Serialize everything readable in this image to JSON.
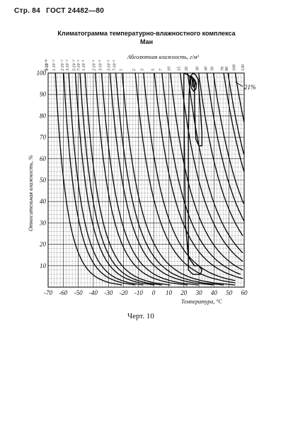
{
  "header": {
    "page_label": "Стр. 84",
    "standard": "ГОСТ 24482—80"
  },
  "figure": {
    "title": "Климатограмма температурно-влажностного комплекса",
    "subtitle": "Ман",
    "caption": "Черт. 10"
  },
  "chart_data": {
    "type": "line",
    "title": "Климатограмма температурно-влажностного комплекса",
    "subtitle": "Ман",
    "xlabel": "Температура, °С",
    "ylabel": "Относительная влажность, %",
    "top_axis_label": "Абсолютная влажность, г/м³",
    "xlim": [
      -70,
      60
    ],
    "ylim": [
      0,
      100
    ],
    "x_ticks": [
      -70,
      -60,
      -50,
      -40,
      -30,
      -20,
      -10,
      0,
      10,
      20,
      30,
      40,
      50,
      60
    ],
    "x_tick_labels": [
      "-70",
      "-60",
      "-50",
      "-40",
      "-30",
      "-20",
      "-10",
      "0",
      "10",
      "20",
      "30",
      "40",
      "50",
      "60"
    ],
    "y_ticks": [
      10,
      20,
      30,
      40,
      50,
      60,
      70,
      80,
      90,
      100
    ],
    "y_tick_labels": [
      "10",
      "20",
      "30",
      "40",
      "50",
      "60",
      "70",
      "80",
      "90",
      "100"
    ],
    "absolute_humidity_labels": [
      "3·10⁻³",
      "5·10⁻³",
      "1·10⁻²",
      "2·10⁻²",
      "3·10⁻²",
      "5·10⁻²",
      "7·10⁻²",
      "1·10⁻¹",
      "2·10⁻¹",
      "3·10⁻¹",
      "5·10⁻¹",
      "7·10⁻¹",
      "1",
      "2",
      "3",
      "5",
      "7",
      "10",
      "15",
      "20",
      "30",
      "40",
      "50",
      "70",
      "80",
      "100",
      "130"
    ],
    "absolute_humidity_values": [
      0.003,
      0.005,
      0.01,
      0.02,
      0.03,
      0.05,
      0.07,
      0.1,
      0.2,
      0.3,
      0.5,
      0.7,
      1,
      2,
      3,
      5,
      7,
      10,
      15,
      20,
      30,
      40,
      50,
      70,
      80,
      100,
      130
    ],
    "annotation": "21%",
    "annotation_value": 21,
    "series": [
      {
        "type": "closed-contour",
        "points": [
          [
            20,
            100
          ],
          [
            23,
            99
          ],
          [
            26,
            97
          ],
          [
            27,
            93
          ],
          [
            27,
            86
          ],
          [
            27.5,
            76
          ],
          [
            28,
            69
          ],
          [
            30,
            66
          ],
          [
            32,
            66
          ],
          [
            32,
            72
          ],
          [
            31,
            83
          ],
          [
            30,
            92
          ],
          [
            29.5,
            97
          ],
          [
            28,
            99
          ],
          [
            26,
            100
          ],
          [
            24,
            98
          ],
          [
            23.5,
            90
          ],
          [
            23,
            72
          ],
          [
            23,
            50
          ],
          [
            23,
            30
          ],
          [
            23,
            15
          ],
          [
            23,
            8
          ],
          [
            26,
            6
          ],
          [
            31,
            6
          ],
          [
            32,
            8
          ],
          [
            30,
            10
          ],
          [
            27,
            10
          ],
          [
            23,
            14
          ],
          [
            21,
            30
          ],
          [
            20.5,
            60
          ],
          [
            20,
            85
          ],
          [
            20,
            100
          ]
        ]
      },
      {
        "type": "closed-contour",
        "points": [
          [
            25,
            98.5
          ],
          [
            27,
            97
          ],
          [
            28.3,
            95
          ],
          [
            28,
            92.5
          ],
          [
            26.5,
            91.5
          ],
          [
            25,
            93
          ],
          [
            24.4,
            95.5
          ],
          [
            25,
            98.5
          ]
        ]
      },
      {
        "type": "closed-contour",
        "points": [
          [
            25.7,
            97
          ],
          [
            27,
            96.5
          ],
          [
            27.5,
            95
          ],
          [
            27,
            93.5
          ],
          [
            26,
            93.5
          ],
          [
            25.5,
            95
          ],
          [
            25.7,
            97
          ]
        ]
      }
    ],
    "grid": true
  }
}
